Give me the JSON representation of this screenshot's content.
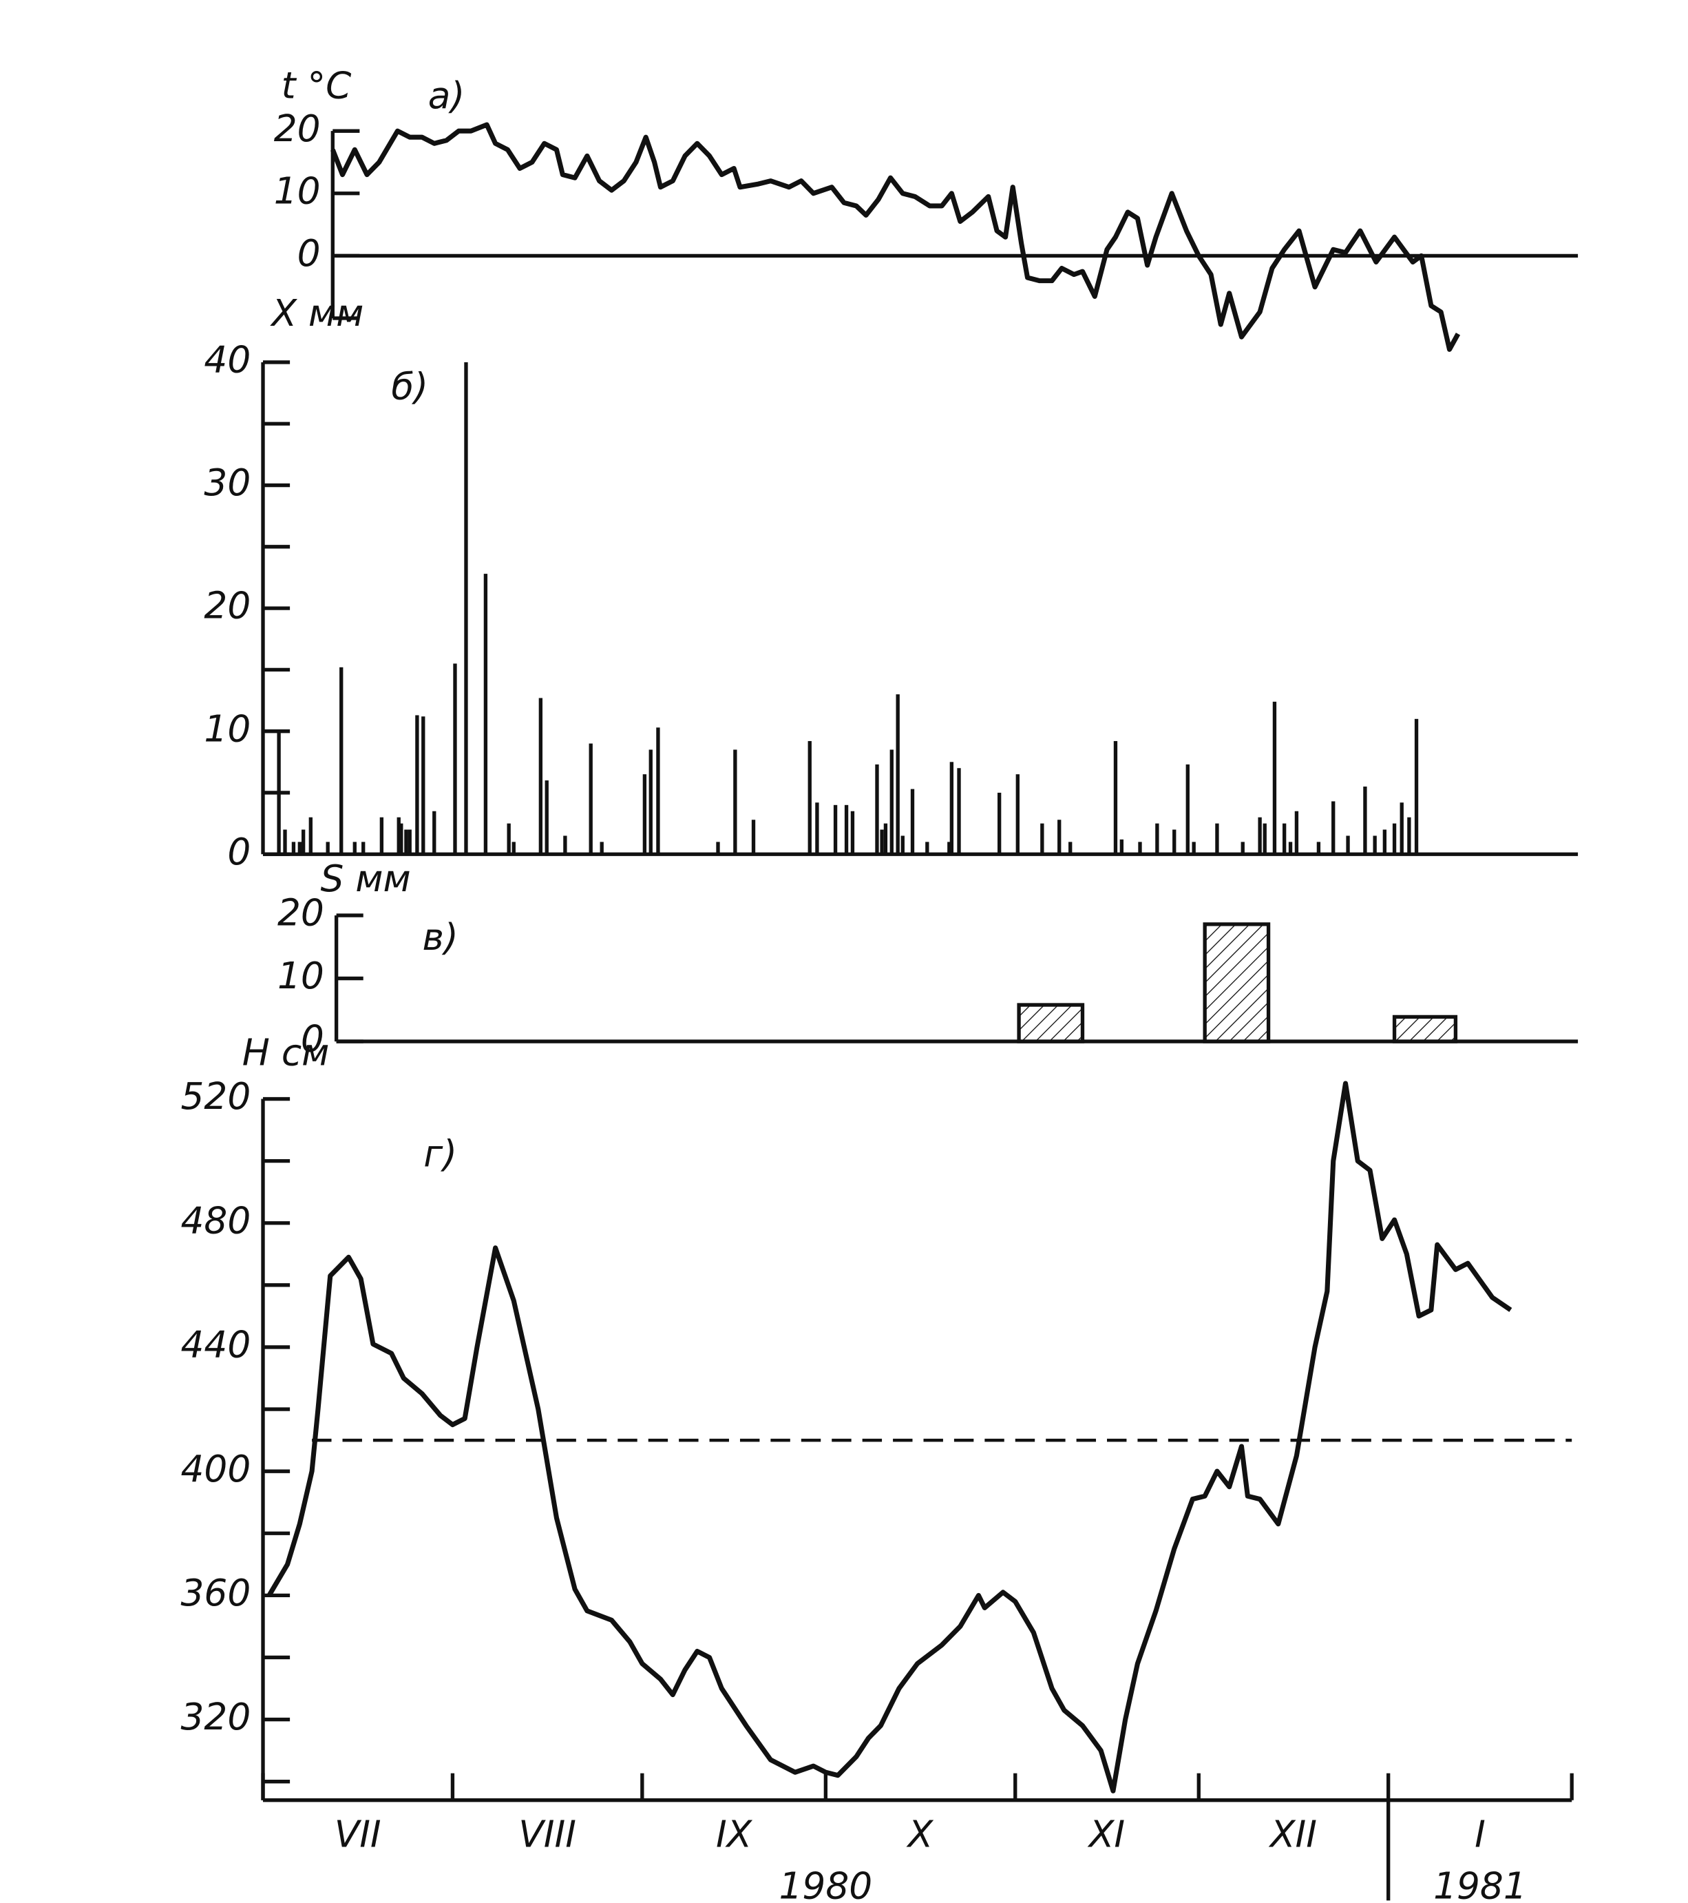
{
  "chart_data": [
    {
      "type": "line",
      "label": "а)",
      "ylabel": "t °C",
      "color": "#111111",
      "xlim": [
        11.4,
        215
      ],
      "ylim": [
        -10,
        20
      ],
      "yticks": [
        20,
        10,
        0
      ],
      "yminorticks": [
        -10
      ],
      "zero_line": true,
      "x": [
        11.4,
        13,
        15,
        17,
        19,
        22,
        24,
        26,
        28,
        30,
        32,
        34,
        36.6,
        38,
        40,
        42,
        44,
        46,
        48,
        49,
        51,
        53,
        55,
        57,
        59,
        61,
        62.6,
        64,
        65,
        67,
        69,
        71,
        73,
        75,
        77,
        78,
        81,
        83,
        86,
        88,
        90,
        93,
        95,
        97,
        98.6,
        100.6,
        102.6,
        104.6,
        106.6,
        109,
        111,
        112.6,
        114,
        116,
        118.6,
        120,
        121.4,
        122.6,
        124,
        125,
        127,
        129,
        130.6,
        132.6,
        134,
        136,
        138,
        139.4,
        141.4,
        143,
        144.6,
        146,
        148.6,
        151,
        153,
        155,
        156.6,
        158,
        160,
        163,
        165,
        167,
        169.4,
        172,
        175,
        177,
        179.4,
        182,
        185,
        188,
        189.4,
        191,
        192.6,
        194,
        195.4
      ],
      "values": [
        17,
        13,
        17,
        13,
        15,
        20,
        19,
        19,
        18,
        18.5,
        20,
        20,
        21,
        18,
        17,
        14,
        15,
        18,
        17,
        13,
        12.5,
        16,
        12,
        10.5,
        12,
        15,
        19,
        15,
        11,
        12,
        16,
        18,
        16,
        13,
        14,
        11,
        11.5,
        12,
        11,
        12,
        10,
        11,
        8.5,
        8,
        6.5,
        9,
        12.5,
        10,
        9.5,
        8,
        8,
        10,
        5.5,
        7,
        9.5,
        4,
        3,
        11,
        2,
        -3.5,
        -4,
        -4,
        -2,
        -3,
        -2.5,
        -6.5,
        1,
        3,
        7,
        6,
        -1.5,
        3,
        10,
        4,
        0,
        -3,
        -11,
        -6,
        -13,
        -9,
        -2,
        1,
        4,
        -5,
        1,
        0.5,
        4,
        -1,
        3,
        -1,
        0,
        -8,
        -9,
        -15,
        -12.5
      ]
    },
    {
      "type": "bar",
      "label": "б)",
      "ylabel": "X мм",
      "color": "#111111",
      "xlim": [
        0,
        215
      ],
      "ylim": [
        0,
        40
      ],
      "yticks": [
        0,
        10,
        20,
        30,
        40
      ],
      "yminorticks": [
        5,
        15,
        25,
        35
      ],
      "x": [
        2.6,
        3.6,
        5,
        6,
        6.6,
        7.8,
        10.6,
        12.8,
        15,
        16.4,
        19.4,
        22.2,
        22.6,
        23.4,
        24,
        25.2,
        26.2,
        28,
        31.4,
        33.2,
        36.4,
        40.2,
        41,
        45.4,
        46.4,
        49.4,
        53.6,
        55.4,
        62.4,
        63.4,
        64.6,
        74.4,
        77.2,
        80.2,
        89.4,
        90.6,
        93.6,
        95.4,
        96.4,
        100.4,
        101.2,
        101.8,
        102.8,
        103.8,
        104.6,
        106.2,
        108.6,
        112.2,
        112.6,
        113.8,
        120.4,
        123.4,
        127.4,
        130.2,
        132,
        139.4,
        140.4,
        143.4,
        146.2,
        149,
        151.2,
        152.2,
        156,
        160.2,
        163,
        163.8,
        165.4,
        167,
        168,
        169,
        172.6,
        175,
        177.4,
        180.2,
        181.8,
        183.4,
        185,
        186.2,
        187.4,
        188.6
      ],
      "values": [
        10,
        2,
        1,
        1,
        2,
        3,
        1,
        15.2,
        1,
        1,
        3,
        3,
        2.5,
        2,
        2,
        11.3,
        11.2,
        3.5,
        15.5,
        40,
        22.8,
        2.5,
        1,
        12.7,
        6,
        1.5,
        9,
        1,
        6.5,
        8.5,
        10.3,
        1,
        8.5,
        2.8,
        9.2,
        4.2,
        4,
        4,
        3.5,
        7.3,
        2,
        2.5,
        8.5,
        13,
        1.5,
        5.3,
        1,
        1,
        7.5,
        7,
        5,
        6.5,
        2.5,
        2.8,
        1,
        9.2,
        1.2,
        1,
        2.5,
        2,
        7.3,
        1,
        2.5,
        1,
        3,
        2.5,
        12.4,
        2.5,
        1,
        3.5,
        1,
        4.3,
        1.5,
        5.5,
        1.5,
        2,
        2.5,
        4.2,
        3,
        11
      ]
    },
    {
      "type": "bar",
      "label": "в)",
      "ylabel": "S мм",
      "color": "#111111",
      "hatch": true,
      "xlim": [
        12,
        215
      ],
      "ylim": [
        0,
        20
      ],
      "yticks": [
        0,
        10,
        20
      ],
      "x_start": [
        123.6,
        154,
        185
      ],
      "x_end": [
        134,
        164.4,
        195
      ],
      "values": [
        5.8,
        18.6,
        3.9
      ]
    },
    {
      "type": "line",
      "label": "г)",
      "ylabel": "Н см",
      "color": "#111111",
      "xlim": [
        0,
        214
      ],
      "ylim": [
        294,
        530
      ],
      "yticks": [
        320,
        360,
        400,
        440,
        480,
        520
      ],
      "yminorticks": [
        300,
        340,
        380,
        420,
        460,
        500
      ],
      "reference_line": 410,
      "xticks": [
        0,
        31,
        62,
        92,
        123,
        153,
        184,
        214
      ],
      "x_categories": [
        "VII",
        "VIII",
        "IX",
        "X",
        "XI",
        "XII",
        "I"
      ],
      "year_break": 184,
      "year_labels": [
        "1980",
        "1981"
      ],
      "x": [
        1,
        4,
        6,
        8,
        9,
        11,
        14,
        16,
        18,
        21,
        23,
        26,
        29,
        31,
        33,
        35,
        38,
        41,
        45,
        48,
        51,
        53,
        57,
        60,
        62,
        65,
        67,
        69,
        71,
        73,
        75,
        79,
        83,
        87,
        90,
        92,
        94,
        97,
        99,
        101,
        104,
        107,
        111,
        114,
        117,
        118,
        121,
        123,
        126,
        129,
        131,
        134,
        137,
        139,
        141,
        143,
        146,
        149,
        152,
        154,
        156,
        158,
        160,
        161,
        163,
        166,
        169,
        172,
        174,
        175,
        177,
        179,
        181,
        183,
        185,
        187,
        189,
        191,
        192,
        195,
        197,
        201,
        204
      ],
      "values": [
        360,
        370,
        383,
        400,
        420,
        463,
        469,
        462,
        441,
        438,
        430,
        425,
        418,
        415,
        417,
        440,
        472,
        455,
        420,
        385,
        362,
        355,
        352,
        345,
        338,
        333,
        328,
        336,
        342,
        340,
        330,
        318,
        307,
        303,
        305,
        303,
        302,
        308,
        314,
        318,
        330,
        338,
        344,
        350,
        360,
        356,
        361,
        358,
        348,
        330,
        323,
        318,
        310,
        297,
        320,
        338,
        355,
        375,
        391,
        392,
        400,
        395,
        408,
        392,
        391,
        383,
        405,
        440,
        458,
        500,
        525,
        500,
        497,
        475,
        481,
        470,
        450,
        452,
        473,
        465,
        467,
        456,
        452
      ]
    }
  ]
}
